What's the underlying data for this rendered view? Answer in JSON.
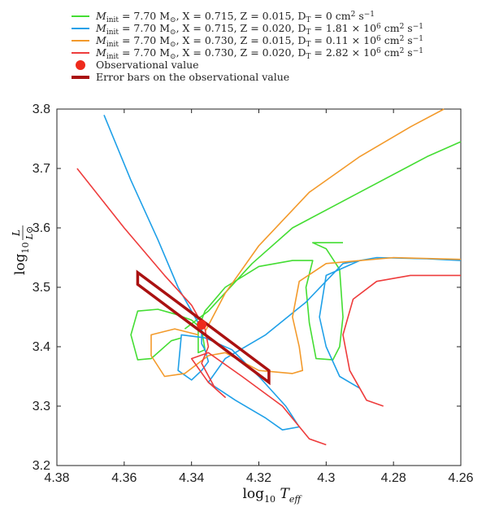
{
  "chart_data": {
    "type": "line",
    "xlabel": "log10 Teff",
    "ylabel": "log10 L/L⊙",
    "xlim": [
      4.38,
      4.26
    ],
    "ylim": [
      3.2,
      3.8
    ],
    "x_reversed": true,
    "x_ticks": [
      "4.38",
      "4.36",
      "4.34",
      "4.32",
      "4.3",
      "4.28",
      "4.26"
    ],
    "y_ticks": [
      "3.2",
      "3.3",
      "3.4",
      "3.5",
      "3.6",
      "3.7",
      "3.8"
    ],
    "legend_position": "top",
    "series": [
      {
        "name": "Minit = 7.70 M⊙, X = 0.715, Z = 0.015, DT = 0 cm² s⁻¹",
        "color": "#44dd33",
        "points": [
          [
            4.343,
            3.415
          ],
          [
            4.346,
            3.41
          ],
          [
            4.352,
            3.38
          ],
          [
            4.356,
            3.378
          ],
          [
            4.358,
            3.42
          ],
          [
            4.356,
            3.46
          ],
          [
            4.35,
            3.463
          ],
          [
            4.345,
            3.455
          ],
          [
            4.34,
            3.445
          ],
          [
            4.337,
            3.43
          ],
          [
            4.336,
            3.395
          ],
          [
            4.338,
            3.39
          ],
          [
            4.338,
            3.43
          ],
          [
            4.336,
            3.46
          ],
          [
            4.33,
            3.5
          ],
          [
            4.32,
            3.535
          ],
          [
            4.31,
            3.545
          ],
          [
            4.304,
            3.545
          ],
          [
            4.306,
            3.5
          ],
          [
            4.305,
            3.44
          ],
          [
            4.303,
            3.38
          ],
          [
            4.298,
            3.378
          ],
          [
            4.296,
            3.4
          ],
          [
            4.295,
            3.45
          ],
          [
            4.296,
            3.53
          ],
          [
            4.3,
            3.565
          ],
          [
            4.304,
            3.575
          ],
          [
            4.295,
            3.575
          ]
        ],
        "points_upper": [
          [
            4.342,
            3.43
          ],
          [
            4.335,
            3.46
          ],
          [
            4.322,
            3.54
          ],
          [
            4.31,
            3.6
          ],
          [
            4.29,
            3.66
          ],
          [
            4.27,
            3.72
          ],
          [
            4.26,
            3.745
          ]
        ]
      },
      {
        "name": "Minit = 7.70 M⊙, X = 0.715, Z = 0.020, DT = 1.81 × 10⁶ cm² s⁻¹",
        "color": "#1fa0e8",
        "points": [
          [
            4.366,
            3.79
          ],
          [
            4.358,
            3.68
          ],
          [
            4.35,
            3.58
          ],
          [
            4.344,
            3.5
          ],
          [
            4.34,
            3.46
          ],
          [
            4.337,
            3.43
          ],
          [
            4.337,
            3.405
          ],
          [
            4.336,
            3.395
          ],
          [
            4.335,
            3.375
          ],
          [
            4.337,
            3.36
          ],
          [
            4.34,
            3.344
          ],
          [
            4.344,
            3.36
          ],
          [
            4.343,
            3.42
          ],
          [
            4.336,
            3.415
          ],
          [
            4.328,
            3.395
          ],
          [
            4.32,
            3.35
          ],
          [
            4.312,
            3.3
          ],
          [
            4.308,
            3.265
          ],
          [
            4.313,
            3.26
          ],
          [
            4.318,
            3.28
          ],
          [
            4.327,
            3.31
          ],
          [
            4.335,
            3.34
          ],
          [
            4.33,
            3.38
          ],
          [
            4.318,
            3.42
          ],
          [
            4.306,
            3.475
          ],
          [
            4.295,
            3.54
          ],
          [
            4.285,
            3.55
          ],
          [
            4.27,
            3.548
          ],
          [
            4.26,
            3.545
          ]
        ],
        "points_upper": [
          [
            4.29,
            3.33
          ],
          [
            4.296,
            3.35
          ],
          [
            4.3,
            3.4
          ],
          [
            4.302,
            3.45
          ],
          [
            4.3,
            3.52
          ],
          [
            4.29,
            3.545
          ]
        ]
      },
      {
        "name": "Minit = 7.70 M⊙, X = 0.730, Z = 0.015, DT = 0.11 × 10⁶ cm² s⁻¹",
        "color": "#f39a2b",
        "points": [
          [
            4.336,
            3.425
          ],
          [
            4.33,
            3.49
          ],
          [
            4.32,
            3.57
          ],
          [
            4.305,
            3.66
          ],
          [
            4.29,
            3.72
          ],
          [
            4.275,
            3.77
          ],
          [
            4.265,
            3.8
          ]
        ],
        "points_upper": [
          [
            4.338,
            3.42
          ],
          [
            4.345,
            3.43
          ],
          [
            4.352,
            3.42
          ],
          [
            4.352,
            3.385
          ],
          [
            4.348,
            3.35
          ],
          [
            4.342,
            3.355
          ],
          [
            4.335,
            3.385
          ],
          [
            4.33,
            3.39
          ],
          [
            4.32,
            3.36
          ],
          [
            4.31,
            3.355
          ],
          [
            4.307,
            3.36
          ],
          [
            4.308,
            3.4
          ],
          [
            4.31,
            3.45
          ],
          [
            4.308,
            3.51
          ],
          [
            4.3,
            3.54
          ],
          [
            4.28,
            3.55
          ],
          [
            4.26,
            3.547
          ]
        ]
      },
      {
        "name": "Minit = 7.70 M⊙, X = 0.730, Z = 0.020, DT = 2.82 × 10⁶ cm² s⁻¹",
        "color": "#ee3c3c",
        "points": [
          [
            4.374,
            3.7
          ],
          [
            4.36,
            3.6
          ],
          [
            4.348,
            3.52
          ],
          [
            4.34,
            3.47
          ],
          [
            4.336,
            3.43
          ],
          [
            4.335,
            3.4
          ],
          [
            4.337,
            3.372
          ],
          [
            4.333,
            3.33
          ],
          [
            4.33,
            3.315
          ],
          [
            4.335,
            3.34
          ],
          [
            4.34,
            3.38
          ],
          [
            4.335,
            3.39
          ],
          [
            4.325,
            3.35
          ],
          [
            4.313,
            3.3
          ],
          [
            4.305,
            3.245
          ],
          [
            4.3,
            3.235
          ]
        ],
        "points_upper": [
          [
            4.283,
            3.3
          ],
          [
            4.288,
            3.31
          ],
          [
            4.293,
            3.36
          ],
          [
            4.295,
            3.42
          ],
          [
            4.292,
            3.48
          ],
          [
            4.285,
            3.51
          ],
          [
            4.275,
            3.52
          ],
          [
            4.26,
            3.52
          ]
        ]
      }
    ],
    "observational_value": {
      "name": "Observational value",
      "x": 4.337,
      "y": 3.437,
      "color": "#ee2a1c"
    },
    "error_box": {
      "name": "Error bars on the observational value",
      "color": "#aa1111",
      "corners": [
        [
          4.356,
          3.525
        ],
        [
          4.356,
          3.505
        ],
        [
          4.317,
          3.34
        ],
        [
          4.317,
          3.36
        ]
      ]
    }
  },
  "legend": {
    "entries": [
      {
        "kind": "line",
        "color": "#44dd33",
        "parts": [
          "M",
          "init",
          " = 7.70 M",
          "⊙",
          ", X = 0.715, Z = 0.015, D",
          "T",
          " = 0 cm",
          "2",
          " s",
          "−1"
        ]
      },
      {
        "kind": "line",
        "color": "#1fa0e8",
        "parts": [
          "M",
          "init",
          " = 7.70 M",
          "⊙",
          ", X = 0.715, Z = 0.020, D",
          "T",
          " = 1.81 × 10",
          "6",
          " cm",
          "2",
          " s",
          "−1"
        ]
      },
      {
        "kind": "line",
        "color": "#f39a2b",
        "parts": [
          "M",
          "init",
          " = 7.70 M",
          "⊙",
          ", X = 0.730, Z = 0.015, D",
          "T",
          " = 0.11 × 10",
          "6",
          " cm",
          "2",
          " s",
          "−1"
        ]
      },
      {
        "kind": "line",
        "color": "#ee3c3c",
        "parts": [
          "M",
          "init",
          " = 7.70 M",
          "⊙",
          ", X = 0.730, Z = 0.020, D",
          "T",
          " = 2.82 × 10",
          "6",
          " cm",
          "2",
          " s",
          "−1"
        ]
      },
      {
        "kind": "marker",
        "color": "#ee2a1c",
        "parts": [
          "Observational value"
        ]
      },
      {
        "kind": "box",
        "color": "#aa1111",
        "parts": [
          "Error bars on the observational value"
        ]
      }
    ]
  },
  "axes": {
    "x_label_main": "log",
    "x_label_sub": "10",
    "x_label_var": "T",
    "x_label_var_sub": "eff",
    "y_label_main": "log",
    "y_label_sub": "10",
    "y_label_num": "L",
    "y_label_den": "L⊙"
  }
}
